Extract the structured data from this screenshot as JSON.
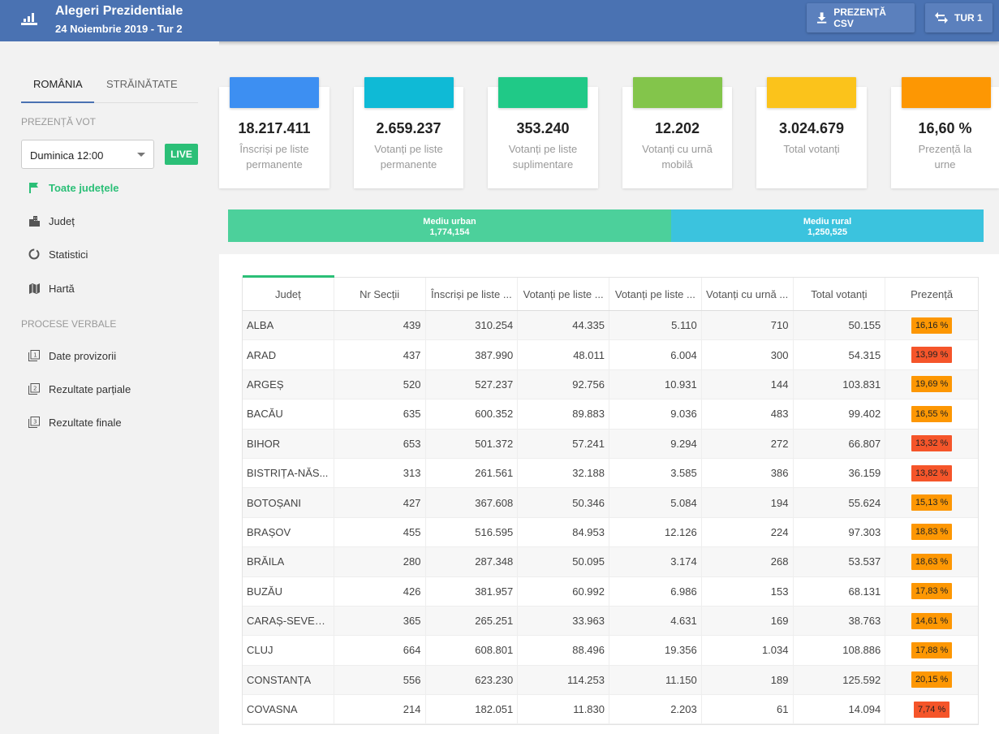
{
  "header": {
    "title": "Alegeri Prezidentiale",
    "subtitle": "24 Noiembrie 2019 - Tur 2",
    "csv_label": "PREZENȚĂ CSV",
    "tur_label": "TUR 1"
  },
  "sidebar": {
    "tabs": [
      "ROMÂNIA",
      "STRĂINĂTATE"
    ],
    "section_vote": "PREZENȚĂ VOT",
    "select_value": "Duminica 12:00",
    "live_label": "LIVE",
    "nav_vote": [
      {
        "label": "Toate județele",
        "icon": "flag-icon",
        "active": true
      },
      {
        "label": "Județ",
        "icon": "city-icon"
      },
      {
        "label": "Statistici",
        "icon": "donut-chart-icon"
      },
      {
        "label": "Hartă",
        "icon": "map-icon"
      }
    ],
    "section_pv": "PROCESE VERBALE",
    "nav_pv": [
      {
        "label": "Date provizorii",
        "icon": "filter-1-icon"
      },
      {
        "label": "Rezultate parțiale",
        "icon": "filter-2-icon"
      },
      {
        "label": "Rezultate finale",
        "icon": "filter-3-icon"
      }
    ]
  },
  "cards": [
    {
      "value": "18.217.411",
      "label": "Înscriși pe liste permanente",
      "color": "#3d8ff2"
    },
    {
      "value": "2.659.237",
      "label": "Votanți pe liste permanente",
      "color": "#0fbad6"
    },
    {
      "value": "353.240",
      "label": "Votanți pe liste suplimentare",
      "color": "#20c987"
    },
    {
      "value": "12.202",
      "label": "Votanți cu urnă mobilă",
      "color": "#83c54b"
    },
    {
      "value": "3.024.679",
      "label": "Total votanți",
      "color": "#fbc31b"
    },
    {
      "value": "16,60 %",
      "label": "Prezență la urne",
      "color": "#fd9703"
    }
  ],
  "environment": {
    "urban_label": "Mediu urban",
    "urban_value": "1,774,154",
    "rural_label": "Mediu rural",
    "rural_value": "1,250,525",
    "urban_color": "#4cd09b",
    "rural_color": "#3bc3de"
  },
  "table": {
    "headers": [
      "Județ",
      "Nr Secții",
      "Înscriși pe liste ...",
      "Votanți pe liste ...",
      "Votanți pe liste ...",
      "Votanți cu urnă ...",
      "Total votanți",
      "Prezență"
    ],
    "rows": [
      [
        "ALBA",
        "439",
        "310.254",
        "44.335",
        "5.110",
        "710",
        "50.155",
        "16,16 %"
      ],
      [
        "ARAD",
        "437",
        "387.990",
        "48.011",
        "6.004",
        "300",
        "54.315",
        "13,99 %"
      ],
      [
        "ARGEȘ",
        "520",
        "527.237",
        "92.756",
        "10.931",
        "144",
        "103.831",
        "19,69 %"
      ],
      [
        "BACĂU",
        "635",
        "600.352",
        "89.883",
        "9.036",
        "483",
        "99.402",
        "16,55 %"
      ],
      [
        "BIHOR",
        "653",
        "501.372",
        "57.241",
        "9.294",
        "272",
        "66.807",
        "13,32 %"
      ],
      [
        "BISTRIȚA-NĂS...",
        "313",
        "261.561",
        "32.188",
        "3.585",
        "386",
        "36.159",
        "13,82 %"
      ],
      [
        "BOTOȘANI",
        "427",
        "367.608",
        "50.346",
        "5.084",
        "194",
        "55.624",
        "15,13 %"
      ],
      [
        "BRAȘOV",
        "455",
        "516.595",
        "84.953",
        "12.126",
        "224",
        "97.303",
        "18,83 %"
      ],
      [
        "BRĂILA",
        "280",
        "287.348",
        "50.095",
        "3.174",
        "268",
        "53.537",
        "18,63 %"
      ],
      [
        "BUZĂU",
        "426",
        "381.957",
        "60.992",
        "6.986",
        "153",
        "68.131",
        "17,83 %"
      ],
      [
        "CARAȘ-SEVERIN",
        "365",
        "265.251",
        "33.963",
        "4.631",
        "169",
        "38.763",
        "14,61 %"
      ],
      [
        "CLUJ",
        "664",
        "608.801",
        "88.496",
        "19.356",
        "1.034",
        "108.886",
        "17,88 %"
      ],
      [
        "CONSTANȚA",
        "556",
        "623.230",
        "114.253",
        "11.150",
        "189",
        "125.592",
        "20,15 %"
      ],
      [
        "COVASNA",
        "214",
        "182.051",
        "11.830",
        "2.203",
        "61",
        "14.094",
        "7,74 %"
      ]
    ],
    "badge_colors": [
      "#fd9703",
      "#f5552a",
      "#fd9703",
      "#fd9703",
      "#f5552a",
      "#f5552a",
      "#fd9703",
      "#fd9703",
      "#fd9703",
      "#fd9703",
      "#fd9703",
      "#fd9703",
      "#fd9703",
      "#f5552a"
    ]
  }
}
